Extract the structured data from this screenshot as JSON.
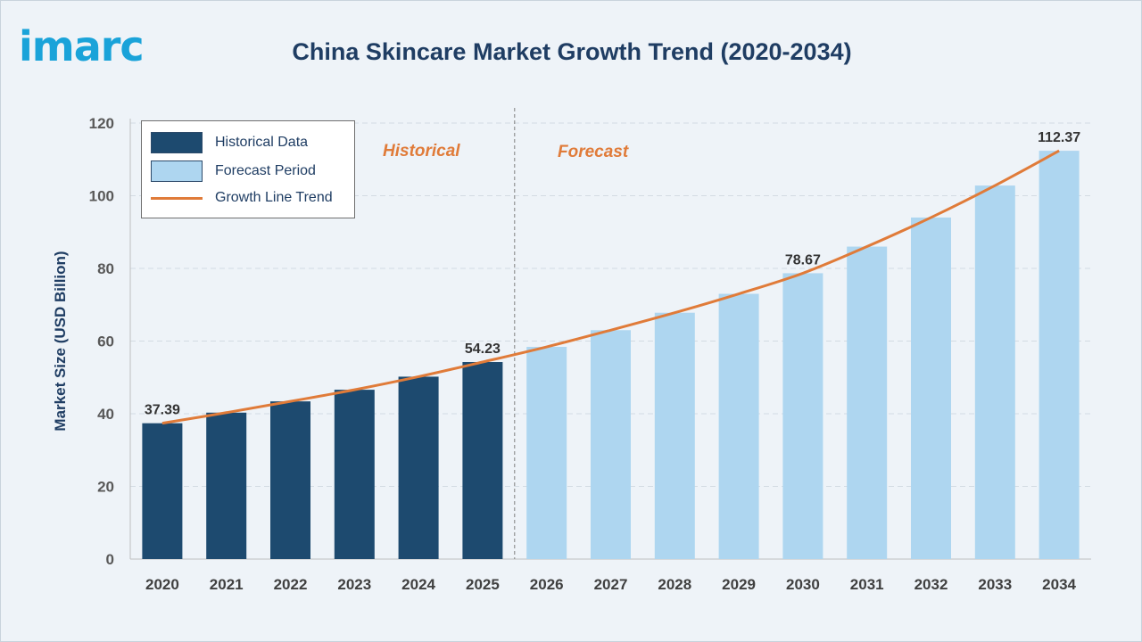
{
  "header": {
    "logo_text": "imarc",
    "title": "China Skincare Market Growth Trend (2020-2034)"
  },
  "legend": {
    "items": [
      {
        "label": "Historical Data",
        "kind": "bar",
        "color": "#1d4a6f"
      },
      {
        "label": "Forecast Period",
        "kind": "bar",
        "color": "#aed6f0"
      },
      {
        "label": "Growth Line Trend",
        "kind": "line",
        "color": "#e07b39"
      }
    ]
  },
  "annotations": {
    "historical_label": "Historical",
    "forecast_label": "Forecast"
  },
  "colors": {
    "historical_bar": "#1d4a6f",
    "forecast_bar": "#aed6f0",
    "trend_line": "#e07b39",
    "title": "#1f3d63",
    "logo": "#1aa3d9"
  },
  "chart_data": {
    "type": "bar",
    "title": "China Skincare Market Growth Trend (2020-2034)",
    "xlabel": "",
    "ylabel": "Market Size (USD Billion)",
    "ylim": [
      0,
      120
    ],
    "yticks": [
      0,
      20,
      40,
      60,
      80,
      100,
      120
    ],
    "grid": true,
    "legend_position": "top-left",
    "categories": [
      "2020",
      "2021",
      "2022",
      "2023",
      "2024",
      "2025",
      "2026",
      "2027",
      "2028",
      "2029",
      "2030",
      "2031",
      "2032",
      "2033",
      "2034"
    ],
    "series": [
      {
        "name": "Historical Data",
        "values": [
          37.39,
          40.3,
          43.4,
          46.6,
          50.2,
          54.23,
          null,
          null,
          null,
          null,
          null,
          null,
          null,
          null,
          null
        ]
      },
      {
        "name": "Forecast Period",
        "values": [
          null,
          null,
          null,
          null,
          null,
          null,
          58.4,
          63.0,
          67.8,
          73.0,
          78.67,
          86.0,
          94.0,
          102.8,
          112.37
        ]
      },
      {
        "name": "Growth Line Trend",
        "type": "line",
        "values": [
          37.39,
          40.3,
          43.4,
          46.6,
          50.2,
          54.23,
          58.4,
          63.0,
          67.8,
          73.0,
          78.67,
          86.0,
          94.0,
          102.8,
          112.37
        ]
      }
    ],
    "data_labels": [
      {
        "category": "2020",
        "text": "37.39"
      },
      {
        "category": "2025",
        "text": "54.23"
      },
      {
        "category": "2030",
        "text": "78.67"
      },
      {
        "category": "2034",
        "text": "112.37"
      }
    ],
    "divider_after": "2025"
  }
}
